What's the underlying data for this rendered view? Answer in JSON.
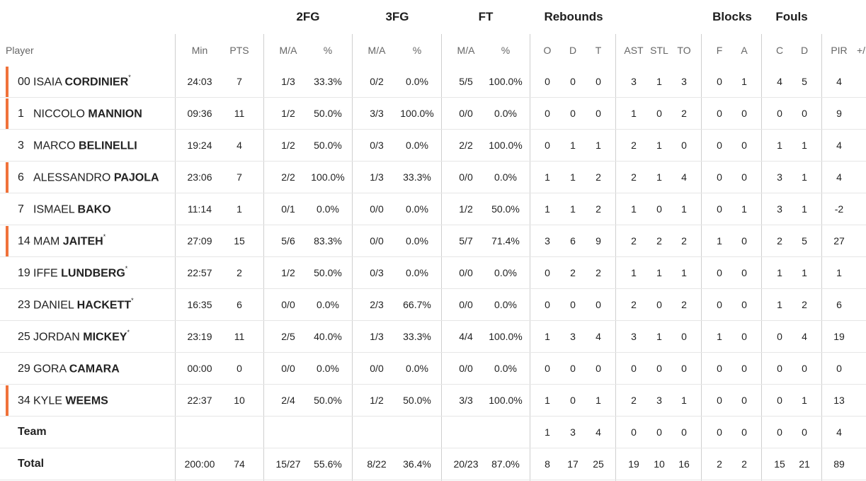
{
  "group_headers": [
    "2FG",
    "3FG",
    "FT",
    "Rebounds",
    "Blocks",
    "Fouls"
  ],
  "column_headers": {
    "player": "Player",
    "min": "Min",
    "pts": "PTS",
    "fg2_ma": "M/A",
    "fg2_pct": "%",
    "fg3_ma": "M/A",
    "fg3_pct": "%",
    "ft_ma": "M/A",
    "ft_pct": "%",
    "o": "O",
    "d": "D",
    "t": "T",
    "ast": "AST",
    "stl": "STL",
    "to": "TO",
    "bf": "F",
    "ba": "A",
    "fc": "C",
    "fd": "D",
    "pir": "PIR",
    "pm": "+/"
  },
  "accent_color": "#f0723a",
  "players": [
    {
      "num": "00",
      "first": "ISAIA",
      "last": "CORDINIER",
      "mark": "*",
      "starter": true,
      "min": "24:03",
      "pts": "7",
      "fg2_ma": "1/3",
      "fg2_pct": "33.3%",
      "fg3_ma": "0/2",
      "fg3_pct": "0.0%",
      "ft_ma": "5/5",
      "ft_pct": "100.0%",
      "o": "0",
      "d": "0",
      "t": "0",
      "ast": "3",
      "stl": "1",
      "to": "3",
      "bf": "0",
      "ba": "1",
      "fc": "4",
      "fd": "5",
      "pir": "4"
    },
    {
      "num": "1",
      "first": "NICCOLO",
      "last": "MANNION",
      "mark": "",
      "starter": true,
      "min": "09:36",
      "pts": "11",
      "fg2_ma": "1/2",
      "fg2_pct": "50.0%",
      "fg3_ma": "3/3",
      "fg3_pct": "100.0%",
      "ft_ma": "0/0",
      "ft_pct": "0.0%",
      "o": "0",
      "d": "0",
      "t": "0",
      "ast": "1",
      "stl": "0",
      "to": "2",
      "bf": "0",
      "ba": "0",
      "fc": "0",
      "fd": "0",
      "pir": "9"
    },
    {
      "num": "3",
      "first": "MARCO",
      "last": "BELINELLI",
      "mark": "",
      "starter": false,
      "min": "19:24",
      "pts": "4",
      "fg2_ma": "1/2",
      "fg2_pct": "50.0%",
      "fg3_ma": "0/3",
      "fg3_pct": "0.0%",
      "ft_ma": "2/2",
      "ft_pct": "100.0%",
      "o": "0",
      "d": "1",
      "t": "1",
      "ast": "2",
      "stl": "1",
      "to": "0",
      "bf": "0",
      "ba": "0",
      "fc": "1",
      "fd": "1",
      "pir": "4"
    },
    {
      "num": "6",
      "first": "ALESSANDRO",
      "last": "PAJOLA",
      "mark": "",
      "starter": true,
      "min": "23:06",
      "pts": "7",
      "fg2_ma": "2/2",
      "fg2_pct": "100.0%",
      "fg3_ma": "1/3",
      "fg3_pct": "33.3%",
      "ft_ma": "0/0",
      "ft_pct": "0.0%",
      "o": "1",
      "d": "1",
      "t": "2",
      "ast": "2",
      "stl": "1",
      "to": "4",
      "bf": "0",
      "ba": "0",
      "fc": "3",
      "fd": "1",
      "pir": "4"
    },
    {
      "num": "7",
      "first": "ISMAEL",
      "last": "BAKO",
      "mark": "",
      "starter": false,
      "min": "11:14",
      "pts": "1",
      "fg2_ma": "0/1",
      "fg2_pct": "0.0%",
      "fg3_ma": "0/0",
      "fg3_pct": "0.0%",
      "ft_ma": "1/2",
      "ft_pct": "50.0%",
      "o": "1",
      "d": "1",
      "t": "2",
      "ast": "1",
      "stl": "0",
      "to": "1",
      "bf": "0",
      "ba": "1",
      "fc": "3",
      "fd": "1",
      "pir": "-2"
    },
    {
      "num": "14",
      "first": "MAM",
      "last": "JAITEH",
      "mark": "*",
      "starter": true,
      "min": "27:09",
      "pts": "15",
      "fg2_ma": "5/6",
      "fg2_pct": "83.3%",
      "fg3_ma": "0/0",
      "fg3_pct": "0.0%",
      "ft_ma": "5/7",
      "ft_pct": "71.4%",
      "o": "3",
      "d": "6",
      "t": "9",
      "ast": "2",
      "stl": "2",
      "to": "2",
      "bf": "1",
      "ba": "0",
      "fc": "2",
      "fd": "5",
      "pir": "27"
    },
    {
      "num": "19",
      "first": "IFFE",
      "last": "LUNDBERG",
      "mark": "*",
      "starter": false,
      "min": "22:57",
      "pts": "2",
      "fg2_ma": "1/2",
      "fg2_pct": "50.0%",
      "fg3_ma": "0/3",
      "fg3_pct": "0.0%",
      "ft_ma": "0/0",
      "ft_pct": "0.0%",
      "o": "0",
      "d": "2",
      "t": "2",
      "ast": "1",
      "stl": "1",
      "to": "1",
      "bf": "0",
      "ba": "0",
      "fc": "1",
      "fd": "1",
      "pir": "1"
    },
    {
      "num": "23",
      "first": "DANIEL",
      "last": "HACKETT",
      "mark": "*",
      "starter": false,
      "min": "16:35",
      "pts": "6",
      "fg2_ma": "0/0",
      "fg2_pct": "0.0%",
      "fg3_ma": "2/3",
      "fg3_pct": "66.7%",
      "ft_ma": "0/0",
      "ft_pct": "0.0%",
      "o": "0",
      "d": "0",
      "t": "0",
      "ast": "2",
      "stl": "0",
      "to": "2",
      "bf": "0",
      "ba": "0",
      "fc": "1",
      "fd": "2",
      "pir": "6"
    },
    {
      "num": "25",
      "first": "JORDAN",
      "last": "MICKEY",
      "mark": "*",
      "starter": false,
      "min": "23:19",
      "pts": "11",
      "fg2_ma": "2/5",
      "fg2_pct": "40.0%",
      "fg3_ma": "1/3",
      "fg3_pct": "33.3%",
      "ft_ma": "4/4",
      "ft_pct": "100.0%",
      "o": "1",
      "d": "3",
      "t": "4",
      "ast": "3",
      "stl": "1",
      "to": "0",
      "bf": "1",
      "ba": "0",
      "fc": "0",
      "fd": "4",
      "pir": "19"
    },
    {
      "num": "29",
      "first": "GORA",
      "last": "CAMARA",
      "mark": "",
      "starter": false,
      "min": "00:00",
      "pts": "0",
      "fg2_ma": "0/0",
      "fg2_pct": "0.0%",
      "fg3_ma": "0/0",
      "fg3_pct": "0.0%",
      "ft_ma": "0/0",
      "ft_pct": "0.0%",
      "o": "0",
      "d": "0",
      "t": "0",
      "ast": "0",
      "stl": "0",
      "to": "0",
      "bf": "0",
      "ba": "0",
      "fc": "0",
      "fd": "0",
      "pir": "0"
    },
    {
      "num": "34",
      "first": "KYLE",
      "last": "WEEMS",
      "mark": "",
      "starter": true,
      "min": "22:37",
      "pts": "10",
      "fg2_ma": "2/4",
      "fg2_pct": "50.0%",
      "fg3_ma": "1/2",
      "fg3_pct": "50.0%",
      "ft_ma": "3/3",
      "ft_pct": "100.0%",
      "o": "1",
      "d": "0",
      "t": "1",
      "ast": "2",
      "stl": "3",
      "to": "1",
      "bf": "0",
      "ba": "0",
      "fc": "0",
      "fd": "1",
      "pir": "13"
    }
  ],
  "team_row": {
    "label": "Team",
    "min": "",
    "pts": "",
    "fg2_ma": "",
    "fg2_pct": "",
    "fg3_ma": "",
    "fg3_pct": "",
    "ft_ma": "",
    "ft_pct": "",
    "o": "1",
    "d": "3",
    "t": "4",
    "ast": "0",
    "stl": "0",
    "to": "0",
    "bf": "0",
    "ba": "0",
    "fc": "0",
    "fd": "0",
    "pir": "4"
  },
  "total_row": {
    "label": "Total",
    "min": "200:00",
    "pts": "74",
    "fg2_ma": "15/27",
    "fg2_pct": "55.6%",
    "fg3_ma": "8/22",
    "fg3_pct": "36.4%",
    "ft_ma": "20/23",
    "ft_pct": "87.0%",
    "o": "8",
    "d": "17",
    "t": "25",
    "ast": "19",
    "stl": "10",
    "to": "16",
    "bf": "2",
    "ba": "2",
    "fc": "15",
    "fd": "21",
    "pir": "89"
  }
}
